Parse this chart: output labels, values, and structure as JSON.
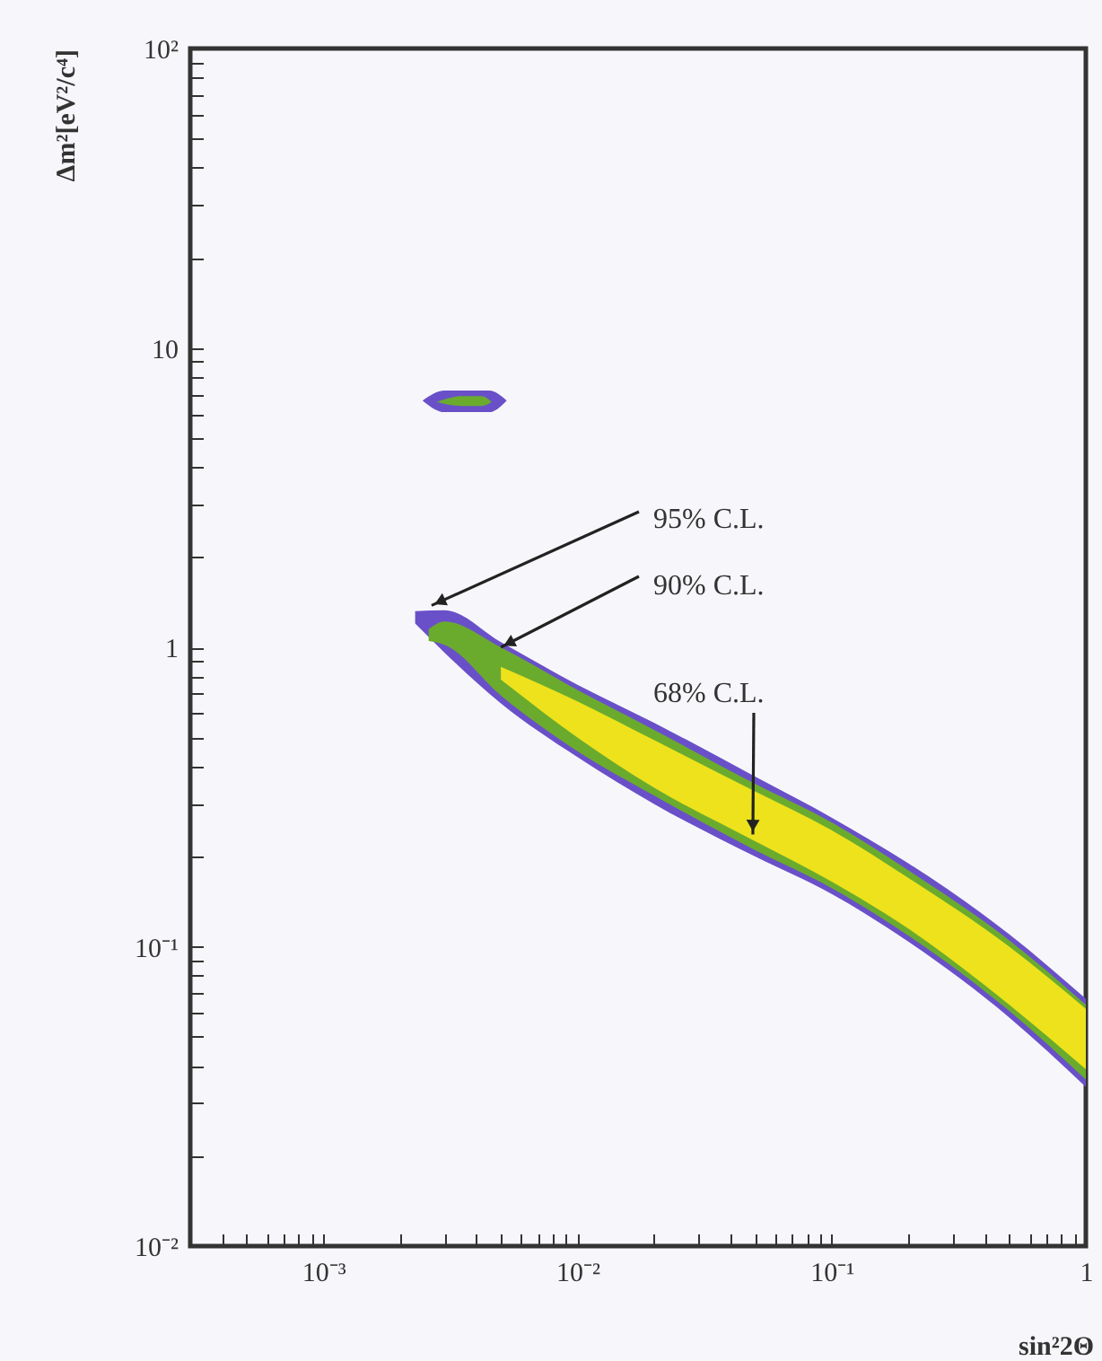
{
  "chart_data": {
    "type": "area",
    "xlabel": "sin²2Θ",
    "ylabel": "Δm²[eV²/c⁴]",
    "log": "xy",
    "grid": false,
    "xlim": [
      0.0003,
      1
    ],
    "ylim": [
      0.01,
      100
    ],
    "xticks": [
      {
        "value": 0.0004,
        "label": null
      },
      {
        "value": 0.0005,
        "label": null
      },
      {
        "value": 0.0006,
        "label": null
      },
      {
        "value": 0.0007,
        "label": null
      },
      {
        "value": 0.0008,
        "label": null
      },
      {
        "value": 0.0009,
        "label": null
      },
      {
        "value": 0.001,
        "label": "10⁻³"
      },
      {
        "value": 0.002,
        "label": null
      },
      {
        "value": 0.003,
        "label": null
      },
      {
        "value": 0.004,
        "label": null
      },
      {
        "value": 0.005,
        "label": null
      },
      {
        "value": 0.006,
        "label": null
      },
      {
        "value": 0.007,
        "label": null
      },
      {
        "value": 0.008,
        "label": null
      },
      {
        "value": 0.009,
        "label": null
      },
      {
        "value": 0.01,
        "label": "10⁻²"
      },
      {
        "value": 0.02,
        "label": null
      },
      {
        "value": 0.03,
        "label": null
      },
      {
        "value": 0.04,
        "label": null
      },
      {
        "value": 0.05,
        "label": null
      },
      {
        "value": 0.06,
        "label": null
      },
      {
        "value": 0.07,
        "label": null
      },
      {
        "value": 0.08,
        "label": null
      },
      {
        "value": 0.09,
        "label": null
      },
      {
        "value": 0.1,
        "label": "10⁻¹"
      },
      {
        "value": 0.2,
        "label": null
      },
      {
        "value": 0.3,
        "label": null
      },
      {
        "value": 0.4,
        "label": null
      },
      {
        "value": 0.5,
        "label": null
      },
      {
        "value": 0.6,
        "label": null
      },
      {
        "value": 0.7,
        "label": null
      },
      {
        "value": 0.8,
        "label": null
      },
      {
        "value": 0.9,
        "label": null
      },
      1
    ],
    "yticks": [
      {
        "value": 0.01,
        "label": "10⁻²"
      },
      {
        "value": 0.02,
        "label": null
      },
      {
        "value": 0.03,
        "label": null
      },
      {
        "value": 0.04,
        "label": null
      },
      {
        "value": 0.05,
        "label": null
      },
      {
        "value": 0.06,
        "label": null
      },
      {
        "value": 0.07,
        "label": null
      },
      {
        "value": 0.08,
        "label": null
      },
      {
        "value": 0.09,
        "label": null
      },
      {
        "value": 0.1,
        "label": "10⁻¹"
      },
      {
        "value": 0.2,
        "label": null
      },
      {
        "value": 0.3,
        "label": null
      },
      {
        "value": 0.4,
        "label": null
      },
      {
        "value": 0.5,
        "label": null
      },
      {
        "value": 0.6,
        "label": null
      },
      {
        "value": 0.7,
        "label": null
      },
      {
        "value": 0.8,
        "label": null
      },
      {
        "value": 0.9,
        "label": null
      },
      1,
      {
        "value": 2,
        "label": null
      },
      {
        "value": 3,
        "label": null
      },
      {
        "value": 4,
        "label": null
      },
      {
        "value": 5,
        "label": null
      },
      {
        "value": 6,
        "label": null
      },
      {
        "value": 7,
        "label": null
      },
      {
        "value": 8,
        "label": null
      },
      {
        "value": 9,
        "label": null
      },
      10,
      {
        "value": 20,
        "label": null
      },
      {
        "value": 30,
        "label": null
      },
      {
        "value": 40,
        "label": null
      },
      {
        "value": 50,
        "label": null
      },
      {
        "value": 60,
        "label": null
      },
      {
        "value": 70,
        "label": null
      },
      {
        "value": 80,
        "label": null
      },
      {
        "value": 90,
        "label": null
      },
      {
        "value": 100,
        "label": "10²"
      }
    ],
    "series": [
      {
        "color": "#6a50c8",
        "x": [
          0.0023,
          0.003,
          0.005,
          0.01,
          0.02,
          0.05,
          0.1,
          0.2,
          0.5,
          1
        ],
        "values": [
          null,
          null,
          null,
          null,
          null,
          null,
          null,
          null,
          null,
          null
        ],
        "upper": [
          1.32,
          1.33,
          1.04,
          0.75,
          0.56,
          0.37,
          0.27,
          0.19,
          0.11,
          0.067
        ],
        "lower": [
          1.2,
          0.96,
          0.65,
          0.43,
          0.3,
          0.2,
          0.15,
          0.104,
          0.058,
          0.034
        ]
      },
      {
        "color": "#6a50c8",
        "x": [
          0.00246,
          0.003,
          0.0045,
          0.00527
        ],
        "values": [
          null,
          null,
          null,
          null
        ],
        "upper": [
          6.67,
          7.2,
          7.2,
          6.67
        ],
        "lower": [
          6.67,
          6.1,
          6.1,
          6.67
        ]
      },
      {
        "color": "#6aab2e",
        "x": [
          0.0026,
          0.003,
          0.005,
          0.01,
          0.02,
          0.05,
          0.1,
          0.2,
          0.5,
          1
        ],
        "values": [
          null,
          null,
          null,
          null,
          null,
          null,
          null,
          null,
          null,
          null
        ],
        "upper": [
          1.15,
          1.22,
          1.0,
          0.72,
          0.53,
          0.35,
          0.26,
          0.18,
          0.105,
          0.064
        ],
        "lower": [
          1.05,
          1.02,
          0.69,
          0.45,
          0.32,
          0.21,
          0.157,
          0.109,
          0.061,
          0.036
        ]
      },
      {
        "color": "#6aab2e",
        "x": [
          0.0028,
          0.0035,
          0.0042,
          0.0046
        ],
        "values": [
          null,
          null,
          null,
          null
        ],
        "upper": [
          6.6,
          6.9,
          6.9,
          6.6
        ],
        "lower": [
          6.6,
          6.4,
          6.4,
          6.6
        ]
      },
      {
        "color": "#ede21c",
        "x": [
          0.005,
          0.01,
          0.02,
          0.05,
          0.1,
          0.2,
          0.5,
          1
        ],
        "values": [
          null,
          null,
          null,
          null,
          null,
          null,
          null,
          null
        ],
        "upper": [
          0.86,
          0.66,
          0.49,
          0.33,
          0.245,
          0.17,
          0.1,
          0.062
        ],
        "lower": [
          0.78,
          0.5,
          0.34,
          0.225,
          0.165,
          0.115,
          0.064,
          0.039
        ]
      }
    ],
    "annotations": [
      {
        "text": "95% C.L.",
        "x": 0.00267,
        "y": 1.38
      },
      {
        "text": "90% C.L.",
        "x": 0.005,
        "y": 1.0
      },
      {
        "text": "68% C.L.",
        "x": 0.049,
        "y": 0.237
      }
    ]
  }
}
